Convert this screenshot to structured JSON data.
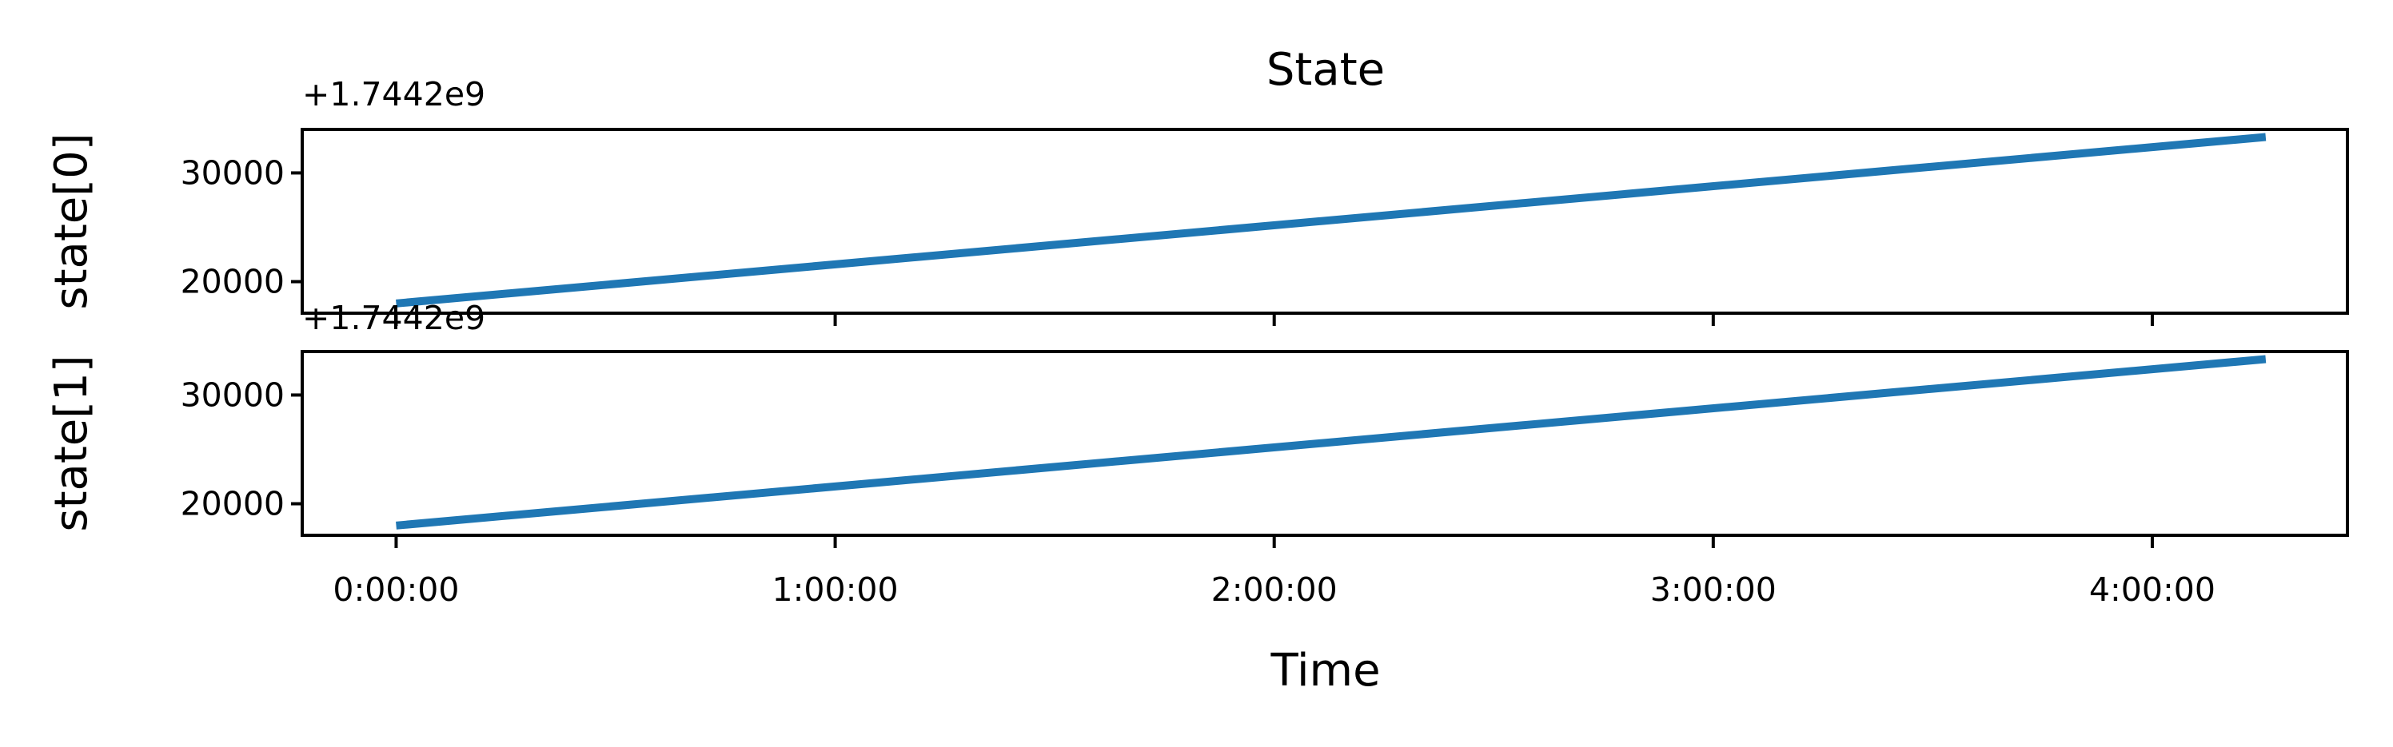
{
  "chart_data": {
    "type": "line",
    "title": "State",
    "xlabel": "Time",
    "x_tick_labels": [
      "0:00:00",
      "1:00:00",
      "2:00:00",
      "3:00:00",
      "4:00:00"
    ],
    "x_ticks_seconds": [
      0,
      3600,
      7200,
      10800,
      14400
    ],
    "xlim_seconds": [
      -770,
      16000
    ],
    "shared_x": true,
    "grid": false,
    "subplots": [
      {
        "ylabel": "state[0]",
        "offset_text": "+1.7442e9",
        "yticks": [
          20000,
          30000
        ],
        "ytick_labels": [
          "20000",
          "30000"
        ],
        "ylim": [
          17100,
          34000
        ],
        "series": [
          {
            "color": "#1f77b4",
            "x_seconds": [
              0,
              15330
            ],
            "y": [
              18000,
              33300
            ]
          }
        ]
      },
      {
        "ylabel": "state[1]",
        "offset_text": "+1.7442e9",
        "yticks": [
          20000,
          30000
        ],
        "ytick_labels": [
          "20000",
          "30000"
        ],
        "ylim": [
          17100,
          34000
        ],
        "series": [
          {
            "color": "#1f77b4",
            "x_seconds": [
              0,
              15330
            ],
            "y": [
              18000,
              33300
            ]
          }
        ]
      }
    ]
  }
}
